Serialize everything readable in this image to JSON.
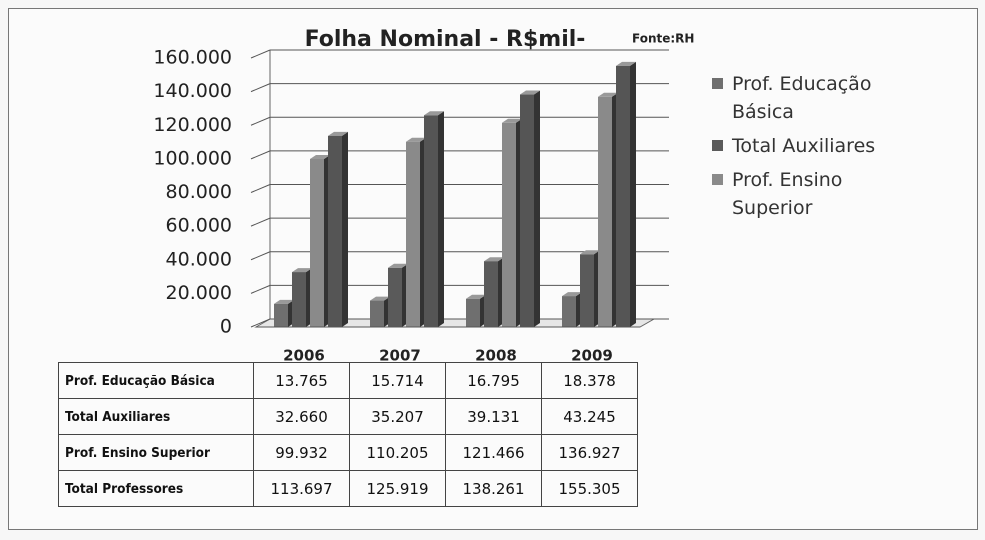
{
  "chart_data": {
    "type": "bar3d",
    "title": "Folha Nominal - R$mil-",
    "annotation": "Fonte:RH",
    "categories": [
      "2006",
      "2007",
      "2008",
      "2009"
    ],
    "series": [
      {
        "name": "Prof. Educação Básica",
        "color": "#6f6f6f",
        "in_legend": true,
        "values": [
          13765,
          15714,
          16795,
          18378
        ],
        "value_labels": [
          "13.765",
          "15.714",
          "16.795",
          "18.378"
        ]
      },
      {
        "name": "Total Auxiliares",
        "color": "#5a5a5a",
        "in_legend": true,
        "values": [
          32660,
          35207,
          39131,
          43245
        ],
        "value_labels": [
          "32.660",
          "35.207",
          "39.131",
          "43.245"
        ]
      },
      {
        "name": "Prof. Ensino Superior",
        "color": "#8a8a8a",
        "in_legend": true,
        "values": [
          99932,
          110205,
          121466,
          136927
        ],
        "value_labels": [
          "99.932",
          "110.205",
          "121.466",
          "136.927"
        ]
      },
      {
        "name": "Total Professores",
        "color": "#555555",
        "in_legend": false,
        "values": [
          113697,
          125919,
          138261,
          155305
        ],
        "value_labels": [
          "113.697",
          "125.919",
          "138.261",
          "155.305"
        ]
      }
    ],
    "ylim": [
      0,
      160000
    ],
    "yticks": [
      0,
      {
        "value": 20000,
        "label": "20.000"
      },
      {
        "value": 40000,
        "label": "40.000"
      },
      {
        "value": 60000,
        "label": "60.000"
      },
      {
        "value": 80000,
        "label": "80.000"
      },
      {
        "value": 100000,
        "label": "100.000"
      },
      {
        "value": 120000,
        "label": "120.000"
      },
      {
        "value": 140000,
        "label": "140.000"
      },
      {
        "value": 160000,
        "label": "160.000"
      }
    ],
    "grid": true
  }
}
